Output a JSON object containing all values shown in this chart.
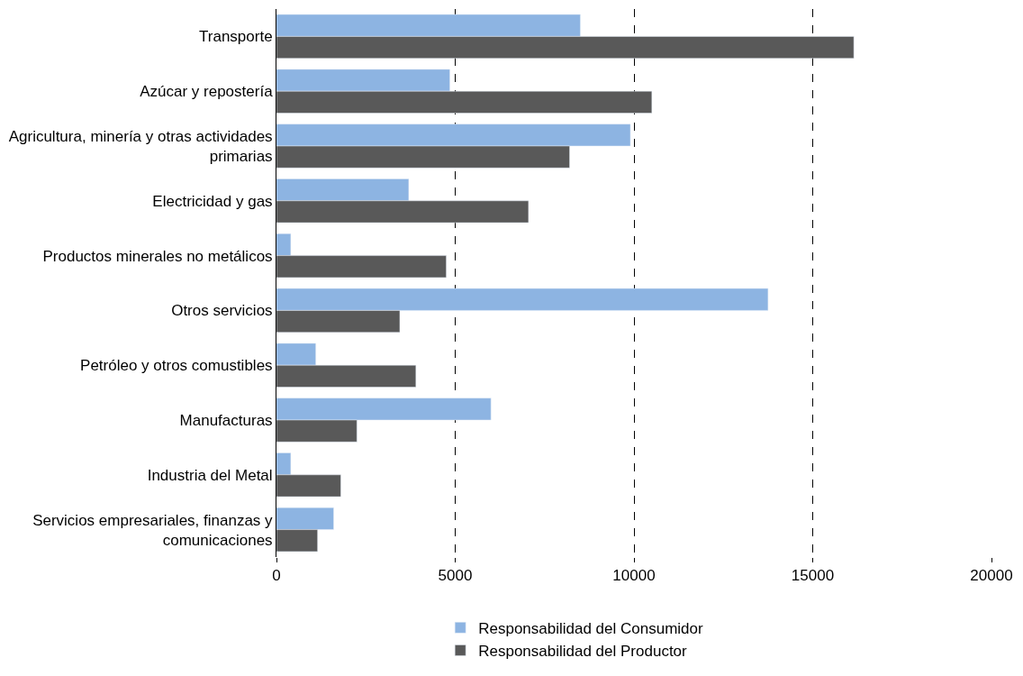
{
  "chart_data": {
    "type": "bar",
    "orientation": "horizontal",
    "categories": [
      "Transporte",
      "Azúcar y repostería",
      "Agricultura, minería y otras actividades primarias",
      "Electricidad y gas",
      "Productos minerales no metálicos",
      "Otros servicios",
      "Petróleo y otros comustibles",
      "Manufacturas",
      "Industria del Metal",
      "Servicios empresariales, finanzas y comunicaciones"
    ],
    "series": [
      {
        "name": "Responsabilidad del Consumidor",
        "color": "#8db4e2",
        "values": [
          8500,
          4850,
          9900,
          3700,
          400,
          13750,
          1100,
          6000,
          400,
          1600
        ]
      },
      {
        "name": "Responsabilidad del Productor",
        "color": "#595959",
        "values": [
          16150,
          10500,
          8200,
          7050,
          4750,
          3450,
          3900,
          2250,
          1800,
          1150
        ]
      }
    ],
    "xlim": [
      0,
      20000
    ],
    "xticks": [
      0,
      5000,
      10000,
      15000,
      20000
    ],
    "grid": "x",
    "legend": "bottom"
  }
}
